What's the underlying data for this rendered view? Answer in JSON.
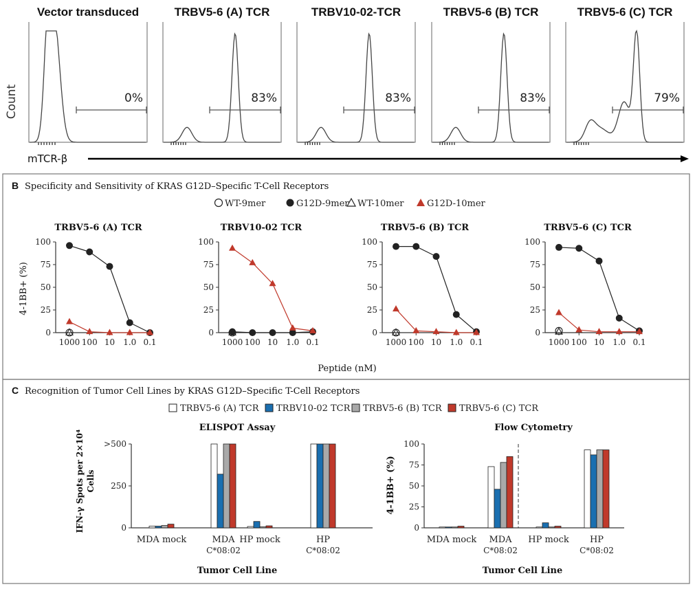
{
  "panel_a": {
    "ylabel": "Count",
    "xlabel": "mTCR-β",
    "histograms": [
      {
        "title": "Vector transduced",
        "percent": "0%"
      },
      {
        "title": "TRBV5-6 (A) TCR",
        "percent": "83%"
      },
      {
        "title": "TRBV10-02-TCR",
        "percent": "83%"
      },
      {
        "title": "TRBV5-6 (B) TCR",
        "percent": "83%"
      },
      {
        "title": "TRBV5-6 (C) TCR",
        "percent": "79%"
      }
    ]
  },
  "panel_b": {
    "letter": "B",
    "title": "Specificity and Sensitivity of KRAS G12D–Specific T-Cell Receptors",
    "legend": [
      "WT-9mer",
      "G12D-9mer",
      "WT-10mer",
      "G12D-10mer"
    ],
    "ylabel": "4-1BB+ (%)",
    "xlabel": "Peptide (nM)",
    "x_ticks": [
      "1000",
      "100",
      "10",
      "1.0",
      "0.1"
    ],
    "y_ticks": [
      "100",
      "75",
      "50",
      "25",
      "0"
    ]
  },
  "panel_c": {
    "letter": "C",
    "title": "Recognition of Tumor Cell Lines by KRAS G12D–Specific T-Cell Receptors",
    "legend": [
      "TRBV5-6 (A) TCR",
      "TRBV10-02 TCR",
      "TRBV5-6 (B) TCR",
      "TRBV5-6 (C) TCR"
    ],
    "xlabel": "Tumor Cell Line",
    "groups": [
      {
        "name": "MDA mock",
        "sub": ""
      },
      {
        "name": "MDA",
        "sub": "C*08:02"
      },
      {
        "name": "HP mock",
        "sub": ""
      },
      {
        "name": "HP",
        "sub": "C*08:02"
      }
    ],
    "elispot": {
      "title": "ELISPOT Assay",
      "ylabel_1": "IFN-γ Spots per 2×10⁴",
      "ylabel_2": "Cells",
      "y_ticks": [
        ">500",
        "250",
        "0"
      ]
    },
    "flow": {
      "title": "Flow Cytometry",
      "ylabel": "4-1BB+ (%)",
      "y_ticks": [
        "100",
        "75",
        "50",
        "25",
        "0"
      ]
    }
  },
  "colors": {
    "wt": "#ffffff",
    "g12d_9mer": "#222222",
    "g12d_10mer": "#c0392b",
    "bar_a": "#ffffff",
    "bar_b10": "#1a6fb0",
    "bar_b": "#a9a9a9",
    "bar_c": "#c0392b"
  },
  "chart_data": [
    {
      "type": "line",
      "title": "TRBV5-6 (A) TCR",
      "x": [
        "1000",
        "100",
        "10",
        "1.0",
        "0.1"
      ],
      "ylim": [
        0,
        100
      ],
      "series": [
        {
          "name": "WT-9mer",
          "values": [
            0,
            null,
            null,
            null,
            null
          ]
        },
        {
          "name": "G12D-9mer",
          "values": [
            96,
            89,
            73,
            11,
            0
          ]
        },
        {
          "name": "WT-10mer",
          "values": [
            0,
            null,
            null,
            null,
            null
          ]
        },
        {
          "name": "G12D-10mer",
          "values": [
            12,
            1,
            0,
            0,
            0
          ]
        }
      ]
    },
    {
      "type": "line",
      "title": "TRBV10-02 TCR",
      "x": [
        "1000",
        "100",
        "10",
        "1.0",
        "0.1"
      ],
      "ylim": [
        0,
        100
      ],
      "series": [
        {
          "name": "WT-9mer",
          "values": [
            0,
            null,
            null,
            null,
            null
          ]
        },
        {
          "name": "G12D-9mer",
          "values": [
            1,
            0,
            0,
            0,
            1
          ]
        },
        {
          "name": "WT-10mer",
          "values": [
            0,
            null,
            null,
            null,
            null
          ]
        },
        {
          "name": "G12D-10mer",
          "values": [
            93,
            77,
            54,
            5,
            2
          ]
        }
      ]
    },
    {
      "type": "line",
      "title": "TRBV5-6 (B) TCR",
      "x": [
        "1000",
        "100",
        "10",
        "1.0",
        "0.1"
      ],
      "ylim": [
        0,
        100
      ],
      "series": [
        {
          "name": "WT-9mer",
          "values": [
            0,
            null,
            null,
            null,
            null
          ]
        },
        {
          "name": "G12D-9mer",
          "values": [
            95,
            95,
            84,
            20,
            1
          ]
        },
        {
          "name": "WT-10mer",
          "values": [
            0,
            null,
            null,
            null,
            null
          ]
        },
        {
          "name": "G12D-10mer",
          "values": [
            26,
            2,
            1,
            0,
            0
          ]
        }
      ]
    },
    {
      "type": "line",
      "title": "TRBV5-6 (C) TCR",
      "x": [
        "1000",
        "100",
        "10",
        "1.0",
        "0.1"
      ],
      "ylim": [
        0,
        100
      ],
      "series": [
        {
          "name": "WT-9mer",
          "values": [
            2,
            null,
            null,
            null,
            null
          ]
        },
        {
          "name": "G12D-9mer",
          "values": [
            94,
            93,
            79,
            16,
            2
          ]
        },
        {
          "name": "WT-10mer",
          "values": [
            1,
            null,
            null,
            null,
            null
          ]
        },
        {
          "name": "G12D-10mer",
          "values": [
            22,
            3,
            1,
            1,
            1
          ]
        }
      ]
    },
    {
      "type": "bar",
      "title": "ELISPOT Assay",
      "categories": [
        "MDA mock",
        "MDA C*08:02",
        "HP mock",
        "HP C*08:02"
      ],
      "ylim": [
        0,
        500
      ],
      "series": [
        {
          "name": "TRBV5-6 (A) TCR",
          "values": [
            10,
            500,
            8,
            500
          ]
        },
        {
          "name": "TRBV10-02 TCR",
          "values": [
            10,
            320,
            38,
            500
          ]
        },
        {
          "name": "TRBV5-6 (B) TCR",
          "values": [
            14,
            500,
            6,
            500
          ]
        },
        {
          "name": "TRBV5-6 (C) TCR",
          "values": [
            22,
            500,
            12,
            500
          ]
        }
      ]
    },
    {
      "type": "bar",
      "title": "Flow Cytometry",
      "categories": [
        "MDA mock",
        "MDA C*08:02",
        "HP mock",
        "HP C*08:02"
      ],
      "ylim": [
        0,
        100
      ],
      "series": [
        {
          "name": "TRBV5-6 (A) TCR",
          "values": [
            1,
            73,
            1,
            93
          ]
        },
        {
          "name": "TRBV10-02 TCR",
          "values": [
            1,
            46,
            6,
            87
          ]
        },
        {
          "name": "TRBV5-6 (B) TCR",
          "values": [
            1,
            78,
            1,
            93
          ]
        },
        {
          "name": "TRBV5-6 (C) TCR",
          "values": [
            2,
            85,
            2,
            93
          ]
        }
      ]
    }
  ]
}
